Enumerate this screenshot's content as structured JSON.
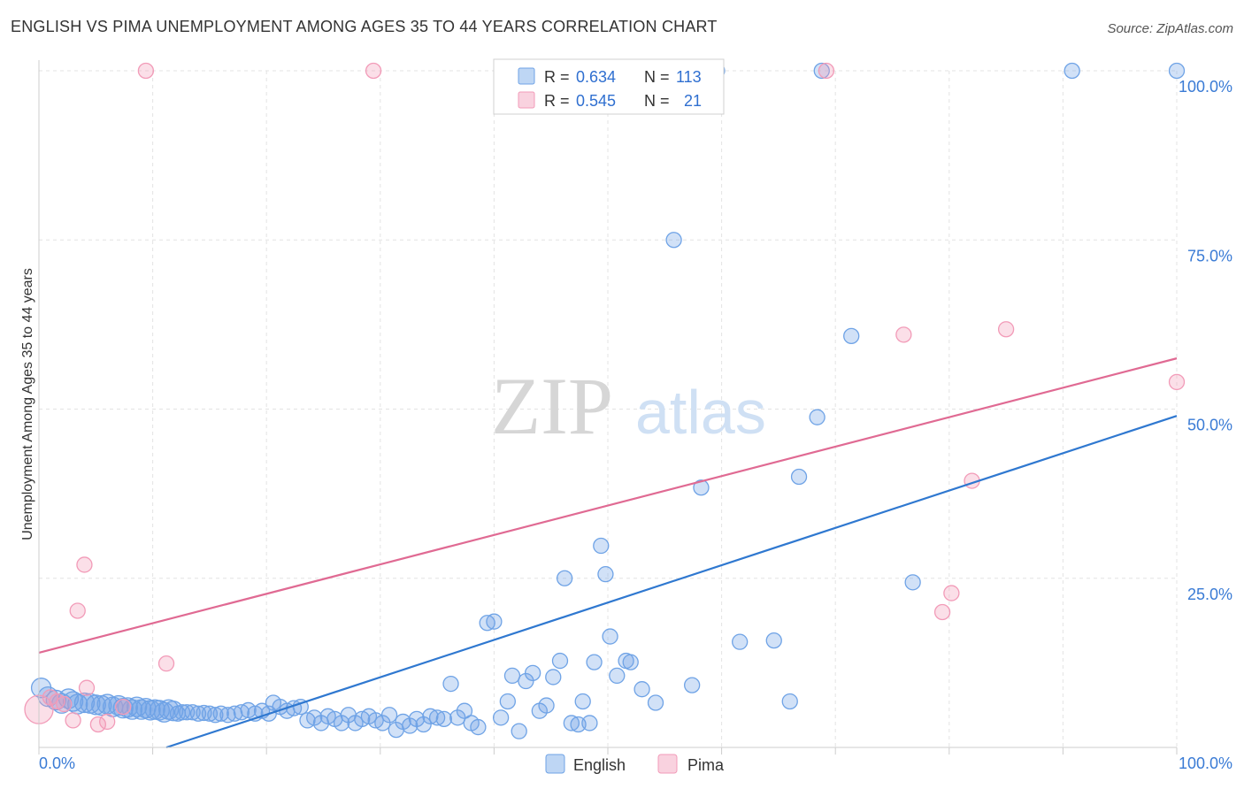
{
  "title": "ENGLISH VS PIMA UNEMPLOYMENT AMONG AGES 35 TO 44 YEARS CORRELATION CHART",
  "source": "Source: ZipAtlas.com",
  "watermark": {
    "zip": "ZIP",
    "atlas": "atlas"
  },
  "stats_legend": {
    "r_label": "R =",
    "n_label": "N =",
    "rows": [
      {
        "r": "0.634",
        "n": "113",
        "color": "#6fa3e6"
      },
      {
        "r": "0.545",
        "n": "21",
        "color": "#f29bb8"
      }
    ]
  },
  "chart_data": {
    "type": "scatter",
    "xlabel": "",
    "ylabel": "Unemployment Among Ages 35 to 44 years",
    "xlim": [
      0,
      100
    ],
    "ylim": [
      0,
      100
    ],
    "x_tick_labels": [
      "0.0%",
      "100.0%"
    ],
    "y_tick_labels": [
      "25.0%",
      "50.0%",
      "75.0%",
      "100.0%"
    ],
    "y_ticks": [
      25,
      50,
      75,
      100
    ],
    "grid": true,
    "legend_position": "bottom-center",
    "series": [
      {
        "name": "English",
        "color": "#6fa3e6",
        "line_color": "#2f78d0",
        "trend": {
          "x": [
            11.2,
            100
          ],
          "y": [
            -4,
            49
          ]
        },
        "points": [
          [
            0.2,
            8.8
          ],
          [
            0.8,
            7.5
          ],
          [
            1.5,
            7.0
          ],
          [
            2.0,
            6.5
          ],
          [
            2.6,
            7.2
          ],
          [
            3.0,
            6.8
          ],
          [
            3.4,
            6.4
          ],
          [
            4.0,
            6.6
          ],
          [
            4.5,
            6.5
          ],
          [
            5.0,
            6.3
          ],
          [
            5.5,
            6.2
          ],
          [
            6.0,
            6.4
          ],
          [
            6.5,
            6.0
          ],
          [
            7.0,
            6.2
          ],
          [
            7.4,
            5.8
          ],
          [
            7.8,
            5.9
          ],
          [
            8.2,
            5.6
          ],
          [
            8.6,
            6.0
          ],
          [
            9.0,
            5.6
          ],
          [
            9.4,
            5.8
          ],
          [
            9.8,
            5.5
          ],
          [
            10.2,
            5.6
          ],
          [
            10.6,
            5.5
          ],
          [
            11.0,
            5.2
          ],
          [
            11.4,
            5.6
          ],
          [
            11.8,
            5.4
          ],
          [
            12.2,
            5.0
          ],
          [
            12.6,
            5.2
          ],
          [
            13.0,
            5.2
          ],
          [
            13.5,
            5.2
          ],
          [
            14.0,
            5.0
          ],
          [
            14.5,
            5.1
          ],
          [
            15.0,
            5.0
          ],
          [
            15.5,
            4.8
          ],
          [
            16.0,
            5.0
          ],
          [
            16.6,
            4.8
          ],
          [
            17.2,
            5.0
          ],
          [
            17.8,
            5.2
          ],
          [
            18.4,
            5.5
          ],
          [
            19.0,
            5.0
          ],
          [
            19.6,
            5.4
          ],
          [
            20.2,
            5.0
          ],
          [
            20.6,
            6.6
          ],
          [
            21.2,
            6.0
          ],
          [
            21.8,
            5.4
          ],
          [
            22.4,
            5.8
          ],
          [
            23.0,
            6.0
          ],
          [
            23.6,
            4.0
          ],
          [
            24.2,
            4.4
          ],
          [
            24.8,
            3.6
          ],
          [
            25.4,
            4.6
          ],
          [
            26.0,
            4.2
          ],
          [
            26.6,
            3.6
          ],
          [
            27.2,
            4.8
          ],
          [
            27.8,
            3.6
          ],
          [
            28.4,
            4.2
          ],
          [
            29.0,
            4.6
          ],
          [
            29.6,
            4.0
          ],
          [
            30.2,
            3.6
          ],
          [
            30.8,
            4.8
          ],
          [
            31.4,
            2.6
          ],
          [
            32.0,
            3.8
          ],
          [
            32.6,
            3.2
          ],
          [
            33.2,
            4.2
          ],
          [
            33.8,
            3.4
          ],
          [
            34.4,
            4.6
          ],
          [
            35.0,
            4.4
          ],
          [
            35.6,
            4.2
          ],
          [
            36.2,
            9.4
          ],
          [
            36.8,
            4.4
          ],
          [
            37.4,
            5.4
          ],
          [
            38.0,
            3.6
          ],
          [
            38.6,
            3.0
          ],
          [
            39.4,
            18.4
          ],
          [
            40.0,
            18.6
          ],
          [
            40.6,
            4.4
          ],
          [
            41.2,
            6.8
          ],
          [
            41.6,
            10.6
          ],
          [
            42.2,
            2.4
          ],
          [
            42.8,
            9.8
          ],
          [
            43.4,
            11.0
          ],
          [
            44.0,
            5.4
          ],
          [
            44.6,
            6.2
          ],
          [
            45.2,
            10.4
          ],
          [
            45.8,
            12.8
          ],
          [
            46.2,
            25.0
          ],
          [
            46.8,
            3.6
          ],
          [
            47.4,
            3.4
          ],
          [
            47.8,
            6.8
          ],
          [
            48.4,
            3.6
          ],
          [
            48.8,
            12.6
          ],
          [
            49.4,
            29.8
          ],
          [
            49.8,
            25.6
          ],
          [
            50.2,
            16.4
          ],
          [
            50.8,
            10.6
          ],
          [
            51.6,
            12.8
          ],
          [
            52.0,
            12.6
          ],
          [
            53.0,
            8.6
          ],
          [
            54.2,
            6.6
          ],
          [
            55.8,
            75.0
          ],
          [
            57.4,
            9.2
          ],
          [
            58.2,
            38.4
          ],
          [
            59.6,
            100.0
          ],
          [
            61.6,
            15.6
          ],
          [
            64.6,
            15.8
          ],
          [
            66.0,
            6.8
          ],
          [
            66.8,
            40.0
          ],
          [
            68.4,
            48.8
          ],
          [
            68.8,
            100.0
          ],
          [
            71.4,
            60.8
          ],
          [
            76.8,
            24.4
          ],
          [
            90.8,
            100.0
          ],
          [
            100.0,
            100.0
          ]
        ]
      },
      {
        "name": "Pima",
        "color": "#f29bb8",
        "line_color": "#e06a93",
        "trend": {
          "x": [
            0,
            100
          ],
          "y": [
            14,
            57.5
          ]
        },
        "points": [
          [
            0.0,
            5.6
          ],
          [
            1.0,
            7.4
          ],
          [
            2.2,
            6.4
          ],
          [
            3.0,
            4.0
          ],
          [
            3.4,
            20.2
          ],
          [
            4.0,
            27.0
          ],
          [
            4.2,
            8.8
          ],
          [
            5.2,
            3.4
          ],
          [
            6.0,
            3.8
          ],
          [
            7.4,
            6.0
          ],
          [
            9.4,
            100.0
          ],
          [
            11.2,
            12.4
          ],
          [
            29.4,
            100.0
          ],
          [
            69.2,
            100.0
          ],
          [
            76.0,
            61.0
          ],
          [
            79.4,
            20.0
          ],
          [
            80.2,
            22.8
          ],
          [
            82.0,
            39.4
          ],
          [
            85.0,
            61.8
          ],
          [
            100.0,
            54.0
          ],
          [
            1.6,
            6.8
          ]
        ]
      }
    ]
  }
}
